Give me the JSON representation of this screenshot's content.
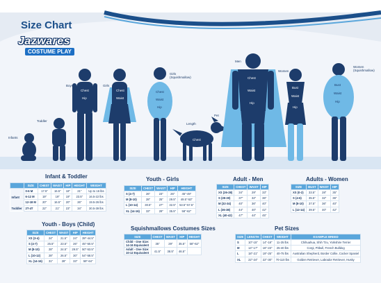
{
  "header": {
    "title": "Size Chart"
  },
  "brand": {
    "name": "Jazwares",
    "sub": "COSTUME PLAY"
  },
  "figure_labels": {
    "infants": "Infants",
    "toddler": "Toddler",
    "boys": "Boys",
    "girls": "Girls",
    "girls_squish": "Girls\n(Squishmallow)",
    "length": "Length",
    "pet": "Pet",
    "men": "Men",
    "women": "Women",
    "women_squish": "Women\n(Squishmallow)",
    "chest": "Chest",
    "waist": "Waist",
    "hip": "Hip",
    "bust": "Bust"
  },
  "infant_toddler": {
    "title": "Infant & Toddler",
    "columns": [
      "SIZE",
      "CHEST",
      "WAIST",
      "HIP",
      "HEIGHT",
      "WEIGHT"
    ],
    "groups": [
      {
        "label": "Infant",
        "rows": [
          [
            "0-6 M",
            "17.5\"",
            "16.5\"",
            "18\"",
            "21\"",
            "Up to 16 lbs"
          ],
          [
            "6-12 M",
            "19\"",
            "19\"",
            "19\"",
            "23.5\"",
            "16.5-22 lbs"
          ],
          [
            "12-18 M",
            "20\"",
            "16.5\"",
            "20\"",
            "26\"",
            "19.5-26 lbs"
          ]
        ]
      },
      {
        "label": "Toddler",
        "rows": [
          [
            "2T-4T",
            "22\"",
            "21\"",
            "23\"",
            "34\"",
            "30.5-39 lbs"
          ]
        ]
      }
    ]
  },
  "youth_girls": {
    "title": "Youth - Girls",
    "columns": [
      "SIZE",
      "CHEST",
      "WAIST",
      "HIP",
      "HEIGHT"
    ],
    "rows": [
      [
        "S (4-7)",
        "26\"",
        "23\"",
        "26\"",
        "45\"-49\""
      ],
      [
        "M (8-10)",
        "28\"",
        "25\"",
        "29.5\"",
        "49.5\"-53\""
      ],
      [
        "L (10-14)",
        "30.5\"",
        "27\"",
        "32.5\"",
        "53.5\"-57.5\""
      ],
      [
        "XL (14-16)",
        "33\"",
        "29\"",
        "35.5\"",
        "58\"-62\""
      ]
    ]
  },
  "adult_men": {
    "title": "Adult - Men",
    "columns": [
      "SIZE",
      "CHEST",
      "WAIST",
      "HIP"
    ],
    "rows": [
      [
        "XS (26-28)",
        "34\"",
        "29\"",
        "33\""
      ],
      [
        "S (28-30)",
        "37\"",
        "32\"",
        "36\""
      ],
      [
        "M (32-34)",
        "40\"",
        "36\"",
        "40\""
      ],
      [
        "L (36-38)",
        "44\"",
        "40\"",
        "42\""
      ],
      [
        "XL (40-42)",
        "47\"",
        "44\"",
        "45\""
      ]
    ]
  },
  "adult_women": {
    "title": "Adults - Women",
    "columns": [
      "SIZE",
      "BUST",
      "WAIST",
      "HIP"
    ],
    "rows": [
      [
        "XS (0-2)",
        "33.5\"",
        "28\"",
        "35\""
      ],
      [
        "S (4-6)",
        "35.5\"",
        "32\"",
        "36\""
      ],
      [
        "M (8-10)",
        "37.5\"",
        "36\"",
        "40\""
      ],
      [
        "L (12-14)",
        "39.5\"",
        "40\"",
        "42\""
      ]
    ]
  },
  "youth_boys": {
    "title": "Youth - Boys (Child)",
    "columns": [
      "SIZE",
      "CHEST",
      "WAIST",
      "HIP",
      "HEIGHT"
    ],
    "rows": [
      [
        "XS (3-4)",
        "24\"",
        "21.5\"",
        "24\"",
        "39\"-44.5\""
      ],
      [
        "S (4-7)",
        "25.5\"",
        "23.5\"",
        "26\"",
        "45\"-50.5\""
      ],
      [
        "M (8-10)",
        "28\"",
        "24.5\"",
        "29.5\"",
        "50\"-53.5\""
      ],
      [
        "L (10-12)",
        "28\"",
        "26.5\"",
        "30\"",
        "54\"-58.5\""
      ],
      [
        "XL (14-16)",
        "31\"",
        "28\"",
        "33\"",
        "59\"-64\""
      ]
    ]
  },
  "squish": {
    "title": "Squishmallows Costumes Sizes",
    "columns": [
      "SIZE",
      "CHEST",
      "WAIST",
      "HIP",
      "HEIGHT"
    ],
    "rows": [
      [
        "Child - One Size:\n14-16 Equivalent",
        "35\"",
        "29\"",
        "35.5\"",
        "58\"-62\""
      ],
      [
        "Adult - One Size:\n10-12 Equivalent",
        "41.5\"",
        "38.5\"",
        "46.5\"",
        ""
      ]
    ]
  },
  "pet": {
    "title": "Pet Sizes",
    "columns": [
      "SIZE",
      "LENGTH",
      "CHEST",
      "WEIGHT",
      "EXAMPLE BREED"
    ],
    "rows": [
      [
        "S",
        "10\"-15\"",
        "14\"-18\"",
        "11-25 lbs",
        "Chihuahua, Shih Tzu, Yorkshire Terrier"
      ],
      [
        "M",
        "14\"-17\"",
        "16\"-23\"",
        "25-40 lbs",
        "Corgi, Pitbull, French Bulldog"
      ],
      [
        "L",
        "18\"-21\"",
        "19\"-25\"",
        "40-75 lbs",
        "Australian Shepherd, Border Collie, Cocker Spaniel"
      ],
      [
        "XL",
        "22\"-24\"",
        "22\"-30\"",
        "70-110 lbs",
        "Golden Retriever, Labrador Retriever, Husky"
      ]
    ]
  },
  "colors": {
    "brand_blue": "#1b4f8a",
    "header_blue": "#5aa6db",
    "silhouette": "#1d3c6b",
    "costume": "#6fb9e6"
  }
}
